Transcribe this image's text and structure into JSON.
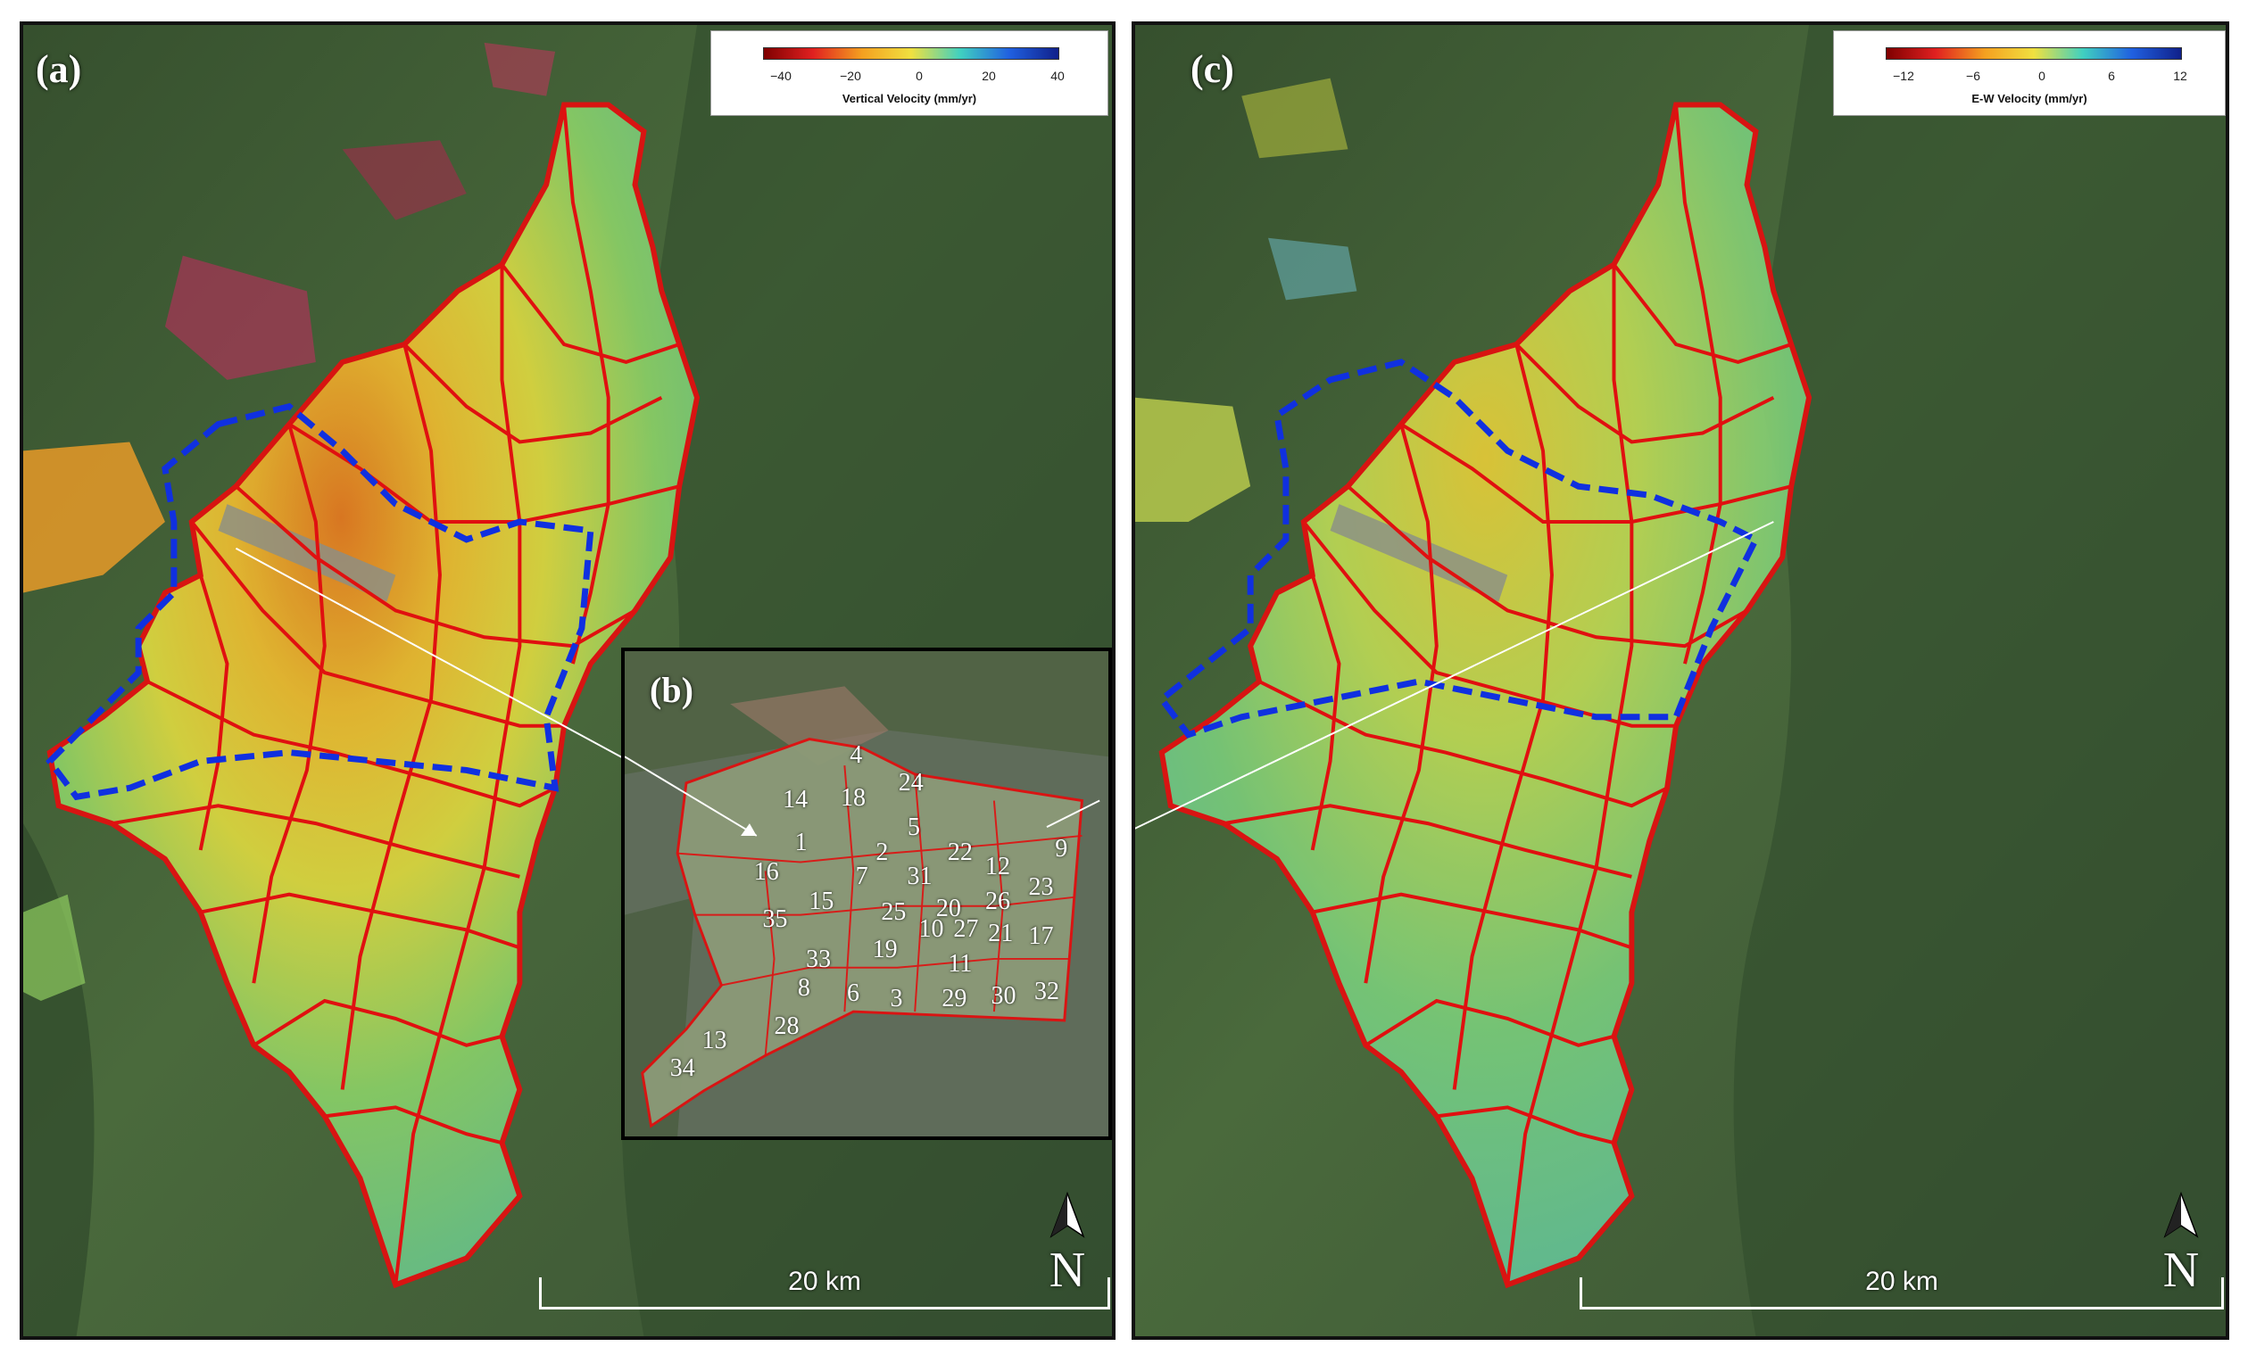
{
  "panels": {
    "a": {
      "label": "(a)",
      "legend": {
        "title": "Vertical Velocity (mm/yr)",
        "ticks": [
          "−40",
          "−20",
          "0",
          "20",
          "40"
        ],
        "colors": [
          "#7f0000",
          "#e02020",
          "#f4a020",
          "#f0e040",
          "#40d0c0",
          "#2060e0",
          "#10208a"
        ]
      },
      "north": "N",
      "scale": "20 km"
    },
    "b": {
      "label": "(b)",
      "localities": [
        "1",
        "2",
        "3",
        "4",
        "5",
        "6",
        "7",
        "8",
        "9",
        "10",
        "11",
        "12",
        "13",
        "14",
        "15",
        "16",
        "17",
        "18",
        "19",
        "20",
        "21",
        "22",
        "23",
        "24",
        "25",
        "26",
        "27",
        "28",
        "29",
        "30",
        "31",
        "32",
        "33",
        "34",
        "35"
      ]
    },
    "c": {
      "label": "(c)",
      "legend": {
        "title": "E-W Velocity (mm/yr)",
        "ticks": [
          "−12",
          "−6",
          "0",
          "6",
          "12"
        ],
        "colors": [
          "#7f0000",
          "#e02020",
          "#f4a020",
          "#f0e040",
          "#40d0c0",
          "#2060e0",
          "#10208a"
        ]
      },
      "north": "N",
      "scale": "20 km"
    }
  },
  "colors": {
    "boundary": "#e01010",
    "subsidence_zone": "#1030e0",
    "vegetation": "#3d5a35"
  }
}
